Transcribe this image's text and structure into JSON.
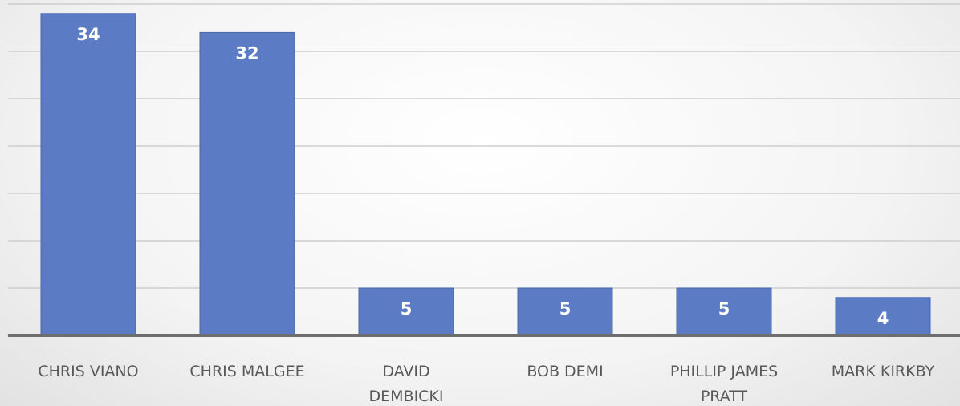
{
  "chart_data": {
    "type": "bar",
    "categories": [
      [
        "CHRIS VIANO"
      ],
      [
        "CHRIS MALGEE"
      ],
      [
        "DAVID",
        "DEMBICKI"
      ],
      [
        "BOB DEMI"
      ],
      [
        "PHILLIP JAMES",
        "PRATT"
      ],
      [
        "MARK KIRKBY"
      ]
    ],
    "values": [
      34,
      32,
      5,
      5,
      5,
      4
    ],
    "data_labels": [
      "34",
      "32",
      "5",
      "5",
      "5",
      "4"
    ],
    "ylim": [
      0,
      35
    ],
    "gridline_step": 5,
    "grid": true,
    "legend": "none",
    "bar_color": "#5b7cc4",
    "bar_border": "#4a67a8",
    "axis_color": "#6e6e6e",
    "grid_color": "#c6c6c6"
  }
}
